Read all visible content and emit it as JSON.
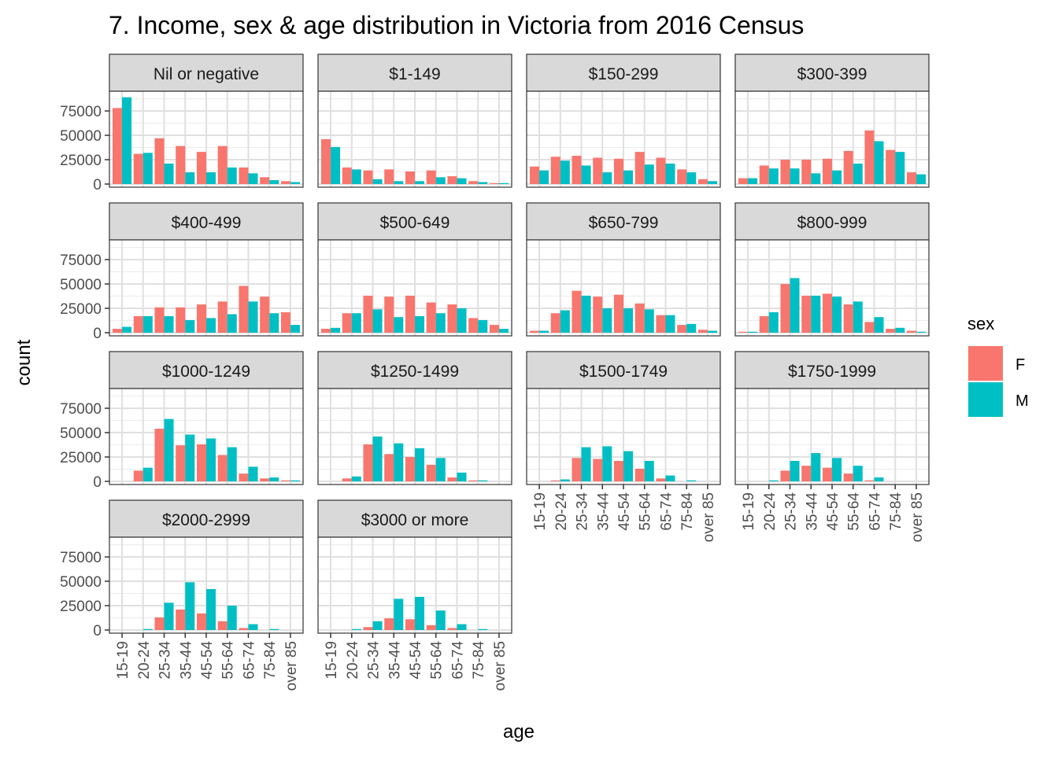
{
  "chart_data": {
    "type": "bar",
    "title": "7. Income, sex & age distribution in Victoria from 2016 Census",
    "xlabel": "age",
    "ylabel": "count",
    "ylim": [
      0,
      92000
    ],
    "yticks": [
      0,
      25000,
      50000,
      75000
    ],
    "ytick_labels": [
      "0",
      "25000",
      "50000",
      "75000"
    ],
    "categories": [
      "15-19",
      "20-24",
      "25-34",
      "35-44",
      "45-54",
      "55-64",
      "65-74",
      "75-84",
      "over 85"
    ],
    "grid": true,
    "legend": {
      "title": "sex",
      "position": "right",
      "entries": [
        {
          "label": "F",
          "color": "#F8766D"
        },
        {
          "label": "M",
          "color": "#00BFC4"
        }
      ]
    },
    "panels": [
      {
        "facet": "Nil or negative",
        "series": [
          {
            "name": "F",
            "values": [
              78000,
              31000,
              47000,
              39000,
              33000,
              39000,
              17000,
              7000,
              3000
            ]
          },
          {
            "name": "M",
            "values": [
              89000,
              32000,
              21000,
              12000,
              12000,
              17000,
              11000,
              4000,
              2000
            ]
          }
        ]
      },
      {
        "facet": "$1-149",
        "series": [
          {
            "name": "F",
            "values": [
              46000,
              17000,
              14000,
              15000,
              13000,
              14000,
              8000,
              3000,
              1000
            ]
          },
          {
            "name": "M",
            "values": [
              38000,
              15000,
              5000,
              3000,
              3000,
              7000,
              6000,
              2000,
              1000
            ]
          }
        ]
      },
      {
        "facet": "$150-299",
        "series": [
          {
            "name": "F",
            "values": [
              18000,
              28000,
              29000,
              27000,
              26000,
              33000,
              27000,
              15000,
              5000
            ]
          },
          {
            "name": "M",
            "values": [
              14000,
              24000,
              19000,
              12000,
              14000,
              20000,
              21000,
              12000,
              3000
            ]
          }
        ]
      },
      {
        "facet": "$300-399",
        "series": [
          {
            "name": "F",
            "values": [
              6000,
              19000,
              25000,
              25000,
              26000,
              34000,
              55000,
              35000,
              12000
            ]
          },
          {
            "name": "M",
            "values": [
              6000,
              16000,
              16000,
              11000,
              14000,
              21000,
              44000,
              33000,
              10000
            ]
          }
        ]
      },
      {
        "facet": "$400-499",
        "series": [
          {
            "name": "F",
            "values": [
              4000,
              17000,
              26000,
              26000,
              29000,
              32000,
              48000,
              37000,
              21000
            ]
          },
          {
            "name": "M",
            "values": [
              6000,
              17000,
              17000,
              13000,
              15000,
              19000,
              32000,
              20000,
              8000
            ]
          }
        ]
      },
      {
        "facet": "$500-649",
        "series": [
          {
            "name": "F",
            "values": [
              4000,
              20000,
              38000,
              37000,
              38000,
              31000,
              29000,
              15000,
              8000
            ]
          },
          {
            "name": "M",
            "values": [
              5000,
              20000,
              24000,
              16000,
              17000,
              20000,
              25000,
              13000,
              4000
            ]
          }
        ]
      },
      {
        "facet": "$650-799",
        "series": [
          {
            "name": "F",
            "values": [
              2000,
              20000,
              43000,
              37000,
              39000,
              30000,
              18000,
              8000,
              3000
            ]
          },
          {
            "name": "M",
            "values": [
              2000,
              23000,
              38000,
              25000,
              25000,
              24000,
              18000,
              9000,
              2000
            ]
          }
        ]
      },
      {
        "facet": "$800-999",
        "series": [
          {
            "name": "F",
            "values": [
              1000,
              17000,
              50000,
              38000,
              40000,
              29000,
              11000,
              4000,
              2000
            ]
          },
          {
            "name": "M",
            "values": [
              1000,
              21000,
              56000,
              38000,
              37000,
              32000,
              16000,
              5000,
              1000
            ]
          }
        ]
      },
      {
        "facet": "$1000-1249",
        "series": [
          {
            "name": "F",
            "values": [
              0,
              11000,
              54000,
              37000,
              38000,
              27000,
              8000,
              3000,
              1000
            ]
          },
          {
            "name": "M",
            "values": [
              0,
              14000,
              64000,
              48000,
              44000,
              35000,
              15000,
              4000,
              1000
            ]
          }
        ]
      },
      {
        "facet": "$1250-1499",
        "series": [
          {
            "name": "F",
            "values": [
              0,
              3000,
              38000,
              28000,
              25000,
              17000,
              4000,
              1000,
              0
            ]
          },
          {
            "name": "M",
            "values": [
              0,
              5000,
              46000,
              39000,
              34000,
              24000,
              9000,
              1000,
              0
            ]
          }
        ]
      },
      {
        "facet": "$1500-1749",
        "series": [
          {
            "name": "F",
            "values": [
              0,
              1000,
              24000,
              23000,
              21000,
              13000,
              3000,
              0,
              0
            ]
          },
          {
            "name": "M",
            "values": [
              0,
              2000,
              35000,
              36000,
              31000,
              21000,
              6000,
              1000,
              0
            ]
          }
        ]
      },
      {
        "facet": "$1750-1999",
        "series": [
          {
            "name": "F",
            "values": [
              0,
              0,
              11000,
              16000,
              14000,
              8000,
              1000,
              0,
              0
            ]
          },
          {
            "name": "M",
            "values": [
              0,
              1000,
              21000,
              29000,
              24000,
              16000,
              4000,
              0,
              0
            ]
          }
        ]
      },
      {
        "facet": "$2000-2999",
        "series": [
          {
            "name": "F",
            "values": [
              0,
              0,
              13000,
              21000,
              17000,
              9000,
              2000,
              0,
              0
            ]
          },
          {
            "name": "M",
            "values": [
              0,
              1000,
              28000,
              49000,
              42000,
              25000,
              6000,
              1000,
              0
            ]
          }
        ]
      },
      {
        "facet": "$3000 or more",
        "series": [
          {
            "name": "F",
            "values": [
              0,
              0,
              3000,
              12000,
              11000,
              5000,
              2000,
              0,
              0
            ]
          },
          {
            "name": "M",
            "values": [
              0,
              1000,
              9000,
              32000,
              34000,
              20000,
              6000,
              1000,
              0
            ]
          }
        ]
      }
    ]
  }
}
